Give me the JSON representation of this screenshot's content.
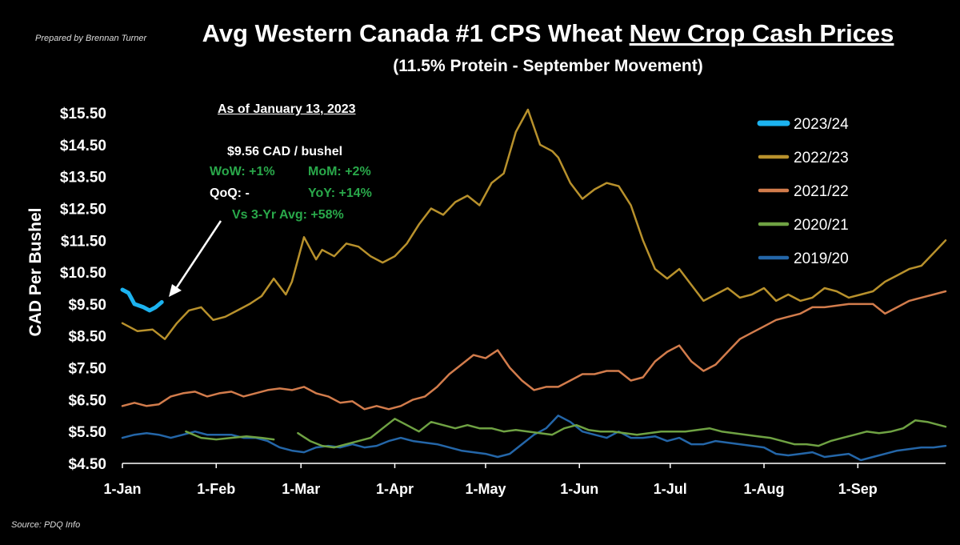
{
  "header": {
    "prepared_by": "Prepared by Brennan Turner",
    "title_plain": "Avg Western Canada #1 CPS Wheat ",
    "title_underlined": "New Crop Cash Prices",
    "subtitle": "(11.5% Protein - September Movement)",
    "source": "Source: PDQ Info"
  },
  "annotation": {
    "as_of": "As of January 13, 2023",
    "price": "$9.56 CAD / bushel",
    "wow": "WoW: +1%",
    "mom": "MoM: +2%",
    "qoq": "QoQ: -",
    "yoy": "YoY: +14%",
    "vs3yr": "Vs 3-Yr Avg: +58%"
  },
  "colors": {
    "s2023": "#1cb3f0",
    "s2022": "#b8912c",
    "s2021": "#d27c4c",
    "s2020": "#6fa243",
    "s2019": "#2466a8"
  },
  "chart_data": {
    "type": "line",
    "title": "Avg Western Canada #1 CPS Wheat New Crop Cash Prices",
    "subtitle": "(11.5% Protein - September Movement)",
    "ylabel": "CAD Per Bushel",
    "xlabel": "",
    "ylim": [
      4.5,
      15.5
    ],
    "yticks": [
      4.5,
      5.5,
      6.5,
      7.5,
      8.5,
      9.5,
      10.5,
      11.5,
      12.5,
      13.5,
      14.5,
      15.5
    ],
    "ytick_labels": [
      "$4.50",
      "$5.50",
      "$6.50",
      "$7.50",
      "$8.50",
      "$9.50",
      "$10.50",
      "$11.50",
      "$12.50",
      "$13.50",
      "$14.50",
      "$15.50"
    ],
    "xlim": [
      "Jan 1",
      "Sep 30"
    ],
    "xticks": [
      0,
      31,
      59,
      90,
      120,
      151,
      181,
      212,
      243
    ],
    "xtick_labels": [
      "1-Jan",
      "1-Feb",
      "1-Mar",
      "1-Apr",
      "1-May",
      "1-Jun",
      "1-Jul",
      "1-Aug",
      "1-Sep"
    ],
    "legend_position": "top-right",
    "grid": false,
    "series": [
      {
        "name": "2023/24",
        "key": "s2023",
        "width": 5,
        "x": [
          0,
          2,
          4,
          7,
          9,
          11,
          13
        ],
        "y": [
          9.95,
          9.85,
          9.5,
          9.4,
          9.3,
          9.4,
          9.56
        ]
      },
      {
        "name": "2022/23",
        "key": "s2022",
        "width": 2.5,
        "x": [
          0,
          5,
          10,
          14,
          18,
          22,
          26,
          30,
          34,
          38,
          42,
          46,
          50,
          54,
          56,
          60,
          64,
          66,
          70,
          74,
          78,
          82,
          86,
          90,
          94,
          98,
          102,
          106,
          110,
          114,
          118,
          122,
          126,
          130,
          134,
          138,
          142,
          144,
          148,
          152,
          156,
          160,
          164,
          168,
          172,
          176,
          180,
          184,
          188,
          192,
          196,
          200,
          204,
          208,
          212,
          216,
          220,
          224,
          228,
          232,
          236,
          240,
          244,
          248,
          252,
          256,
          260,
          264,
          268,
          272
        ],
        "y": [
          8.9,
          8.65,
          8.7,
          8.4,
          8.9,
          9.3,
          9.4,
          9.0,
          9.1,
          9.3,
          9.5,
          9.75,
          10.3,
          9.8,
          10.2,
          11.6,
          10.9,
          11.2,
          11.0,
          11.4,
          11.3,
          11.0,
          10.8,
          11.0,
          11.4,
          12.0,
          12.5,
          12.3,
          12.7,
          12.9,
          12.6,
          13.3,
          13.6,
          14.9,
          15.6,
          14.5,
          14.3,
          14.1,
          13.3,
          12.8,
          13.1,
          13.3,
          13.2,
          12.6,
          11.5,
          10.6,
          10.3,
          10.6,
          10.1,
          9.6,
          9.8,
          10.0,
          9.7,
          9.8,
          10.0,
          9.6,
          9.8,
          9.6,
          9.7,
          10.0,
          9.9,
          9.7,
          9.8,
          9.9,
          10.2,
          10.4,
          10.6,
          10.7,
          11.1,
          11.5
        ]
      },
      {
        "name": "2021/22",
        "key": "s2021",
        "width": 2.5,
        "x": [
          0,
          4,
          8,
          12,
          16,
          20,
          24,
          28,
          32,
          36,
          40,
          44,
          48,
          52,
          56,
          60,
          64,
          68,
          72,
          76,
          80,
          84,
          88,
          92,
          96,
          100,
          104,
          108,
          112,
          116,
          120,
          124,
          128,
          132,
          136,
          140,
          144,
          148,
          152,
          156,
          160,
          164,
          168,
          172,
          176,
          180,
          184,
          188,
          192,
          196,
          200,
          204,
          208,
          212,
          216,
          220,
          224,
          228,
          232,
          236,
          240,
          244,
          248,
          252,
          256,
          260,
          264,
          268,
          272
        ],
        "y": [
          6.3,
          6.4,
          6.3,
          6.35,
          6.6,
          6.7,
          6.75,
          6.6,
          6.7,
          6.75,
          6.6,
          6.7,
          6.8,
          6.85,
          6.8,
          6.9,
          6.7,
          6.6,
          6.4,
          6.45,
          6.2,
          6.3,
          6.2,
          6.3,
          6.5,
          6.6,
          6.9,
          7.3,
          7.6,
          7.9,
          7.8,
          8.05,
          7.5,
          7.1,
          6.8,
          6.9,
          6.9,
          7.1,
          7.3,
          7.3,
          7.4,
          7.4,
          7.1,
          7.2,
          7.7,
          8.0,
          8.2,
          7.7,
          7.4,
          7.6,
          8.0,
          8.4,
          8.6,
          8.8,
          9.0,
          9.1,
          9.2,
          9.4,
          9.4,
          9.45,
          9.5,
          9.5,
          9.5,
          9.2,
          9.4,
          9.6,
          9.7,
          9.8,
          9.9
        ]
      },
      {
        "name": "2020/21",
        "key": "s2020",
        "width": 2.5,
        "x": [
          21,
          26,
          31,
          36,
          41,
          46,
          50,
          null,
          58,
          62,
          66,
          70,
          74,
          78,
          82,
          86,
          90,
          94,
          98,
          102,
          106,
          110,
          114,
          118,
          122,
          126,
          130,
          134,
          138,
          142,
          146,
          150,
          154,
          158,
          162,
          166,
          170,
          174,
          178,
          182,
          186,
          190,
          194,
          198,
          202,
          206,
          210,
          214,
          218,
          222,
          226,
          230,
          234,
          238,
          242,
          246,
          250,
          254,
          258,
          262,
          266,
          270,
          272
        ],
        "y": [
          5.5,
          5.3,
          5.25,
          5.3,
          5.35,
          5.3,
          5.25,
          null,
          5.45,
          5.2,
          5.05,
          5.0,
          5.1,
          5.2,
          5.3,
          5.6,
          5.9,
          5.7,
          5.5,
          5.8,
          5.7,
          5.6,
          5.7,
          5.6,
          5.6,
          5.5,
          5.55,
          5.5,
          5.45,
          5.4,
          5.6,
          5.7,
          5.55,
          5.5,
          5.5,
          5.45,
          5.4,
          5.45,
          5.5,
          5.5,
          5.5,
          5.55,
          5.6,
          5.5,
          5.45,
          5.4,
          5.35,
          5.3,
          5.2,
          5.1,
          5.1,
          5.05,
          5.2,
          5.3,
          5.4,
          5.5,
          5.45,
          5.5,
          5.6,
          5.85,
          5.8,
          5.7,
          5.65
        ]
      },
      {
        "name": "2019/20",
        "key": "s2019",
        "width": 2.5,
        "x": [
          0,
          4,
          8,
          12,
          16,
          20,
          24,
          28,
          32,
          36,
          40,
          44,
          48,
          52,
          56,
          60,
          64,
          68,
          72,
          76,
          80,
          84,
          88,
          92,
          96,
          100,
          104,
          108,
          112,
          116,
          120,
          124,
          128,
          132,
          136,
          140,
          144,
          148,
          152,
          156,
          160,
          164,
          168,
          172,
          176,
          180,
          184,
          188,
          192,
          196,
          200,
          204,
          208,
          212,
          216,
          220,
          224,
          228,
          232,
          236,
          240,
          244,
          248,
          252,
          256,
          260,
          264,
          268,
          272
        ],
        "y": [
          5.3,
          5.4,
          5.45,
          5.4,
          5.3,
          5.4,
          5.5,
          5.4,
          5.4,
          5.4,
          5.3,
          5.3,
          5.2,
          5.0,
          4.9,
          4.85,
          5.0,
          5.05,
          5.0,
          5.1,
          5.0,
          5.05,
          5.2,
          5.3,
          5.2,
          5.15,
          5.1,
          5.0,
          4.9,
          4.85,
          4.8,
          4.7,
          4.8,
          5.1,
          5.4,
          5.6,
          6.0,
          5.8,
          5.5,
          5.4,
          5.3,
          5.5,
          5.3,
          5.3,
          5.35,
          5.2,
          5.3,
          5.1,
          5.1,
          5.2,
          5.15,
          5.1,
          5.05,
          5.0,
          4.8,
          4.75,
          4.8,
          4.85,
          4.7,
          4.75,
          4.8,
          4.6,
          4.7,
          4.8,
          4.9,
          4.95,
          5.0,
          5.0,
          5.05
        ]
      }
    ]
  }
}
